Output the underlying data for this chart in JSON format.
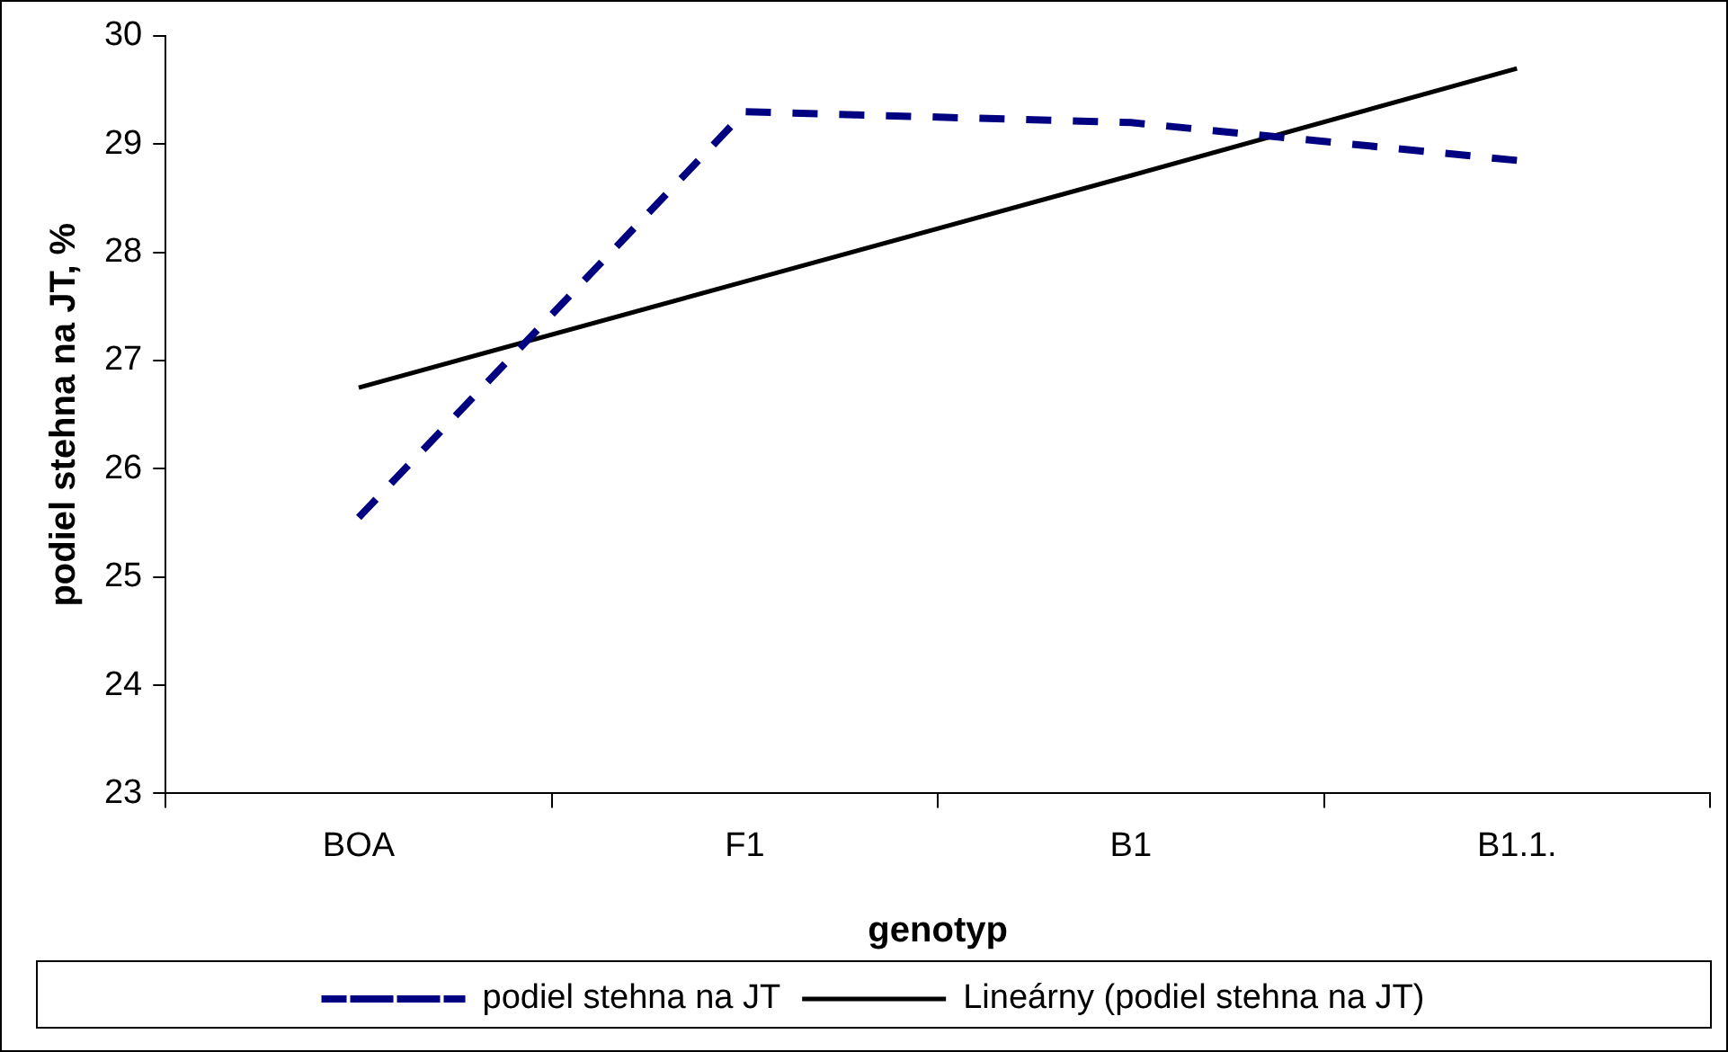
{
  "chart_data": {
    "type": "line",
    "xlabel": "genotyp",
    "ylabel": "podiel stehna na JT, %",
    "categories": [
      "BOA",
      "F1",
      "B1",
      "B1.1."
    ],
    "series": [
      {
        "name": "podiel stehna na JT",
        "color": "#000080",
        "line_style": "dashed",
        "values": [
          25.55,
          29.3,
          29.2,
          28.85
        ]
      },
      {
        "name": "Lineárny (podiel stehna na JT)",
        "color": "#000000",
        "line_style": "solid",
        "values": [
          26.75,
          27.73,
          28.71,
          29.7
        ]
      }
    ],
    "ylim": [
      23,
      30
    ],
    "yticks": [
      23,
      24,
      25,
      26,
      27,
      28,
      29,
      30
    ],
    "grid": false,
    "legend": "bottom",
    "marker": "none"
  }
}
